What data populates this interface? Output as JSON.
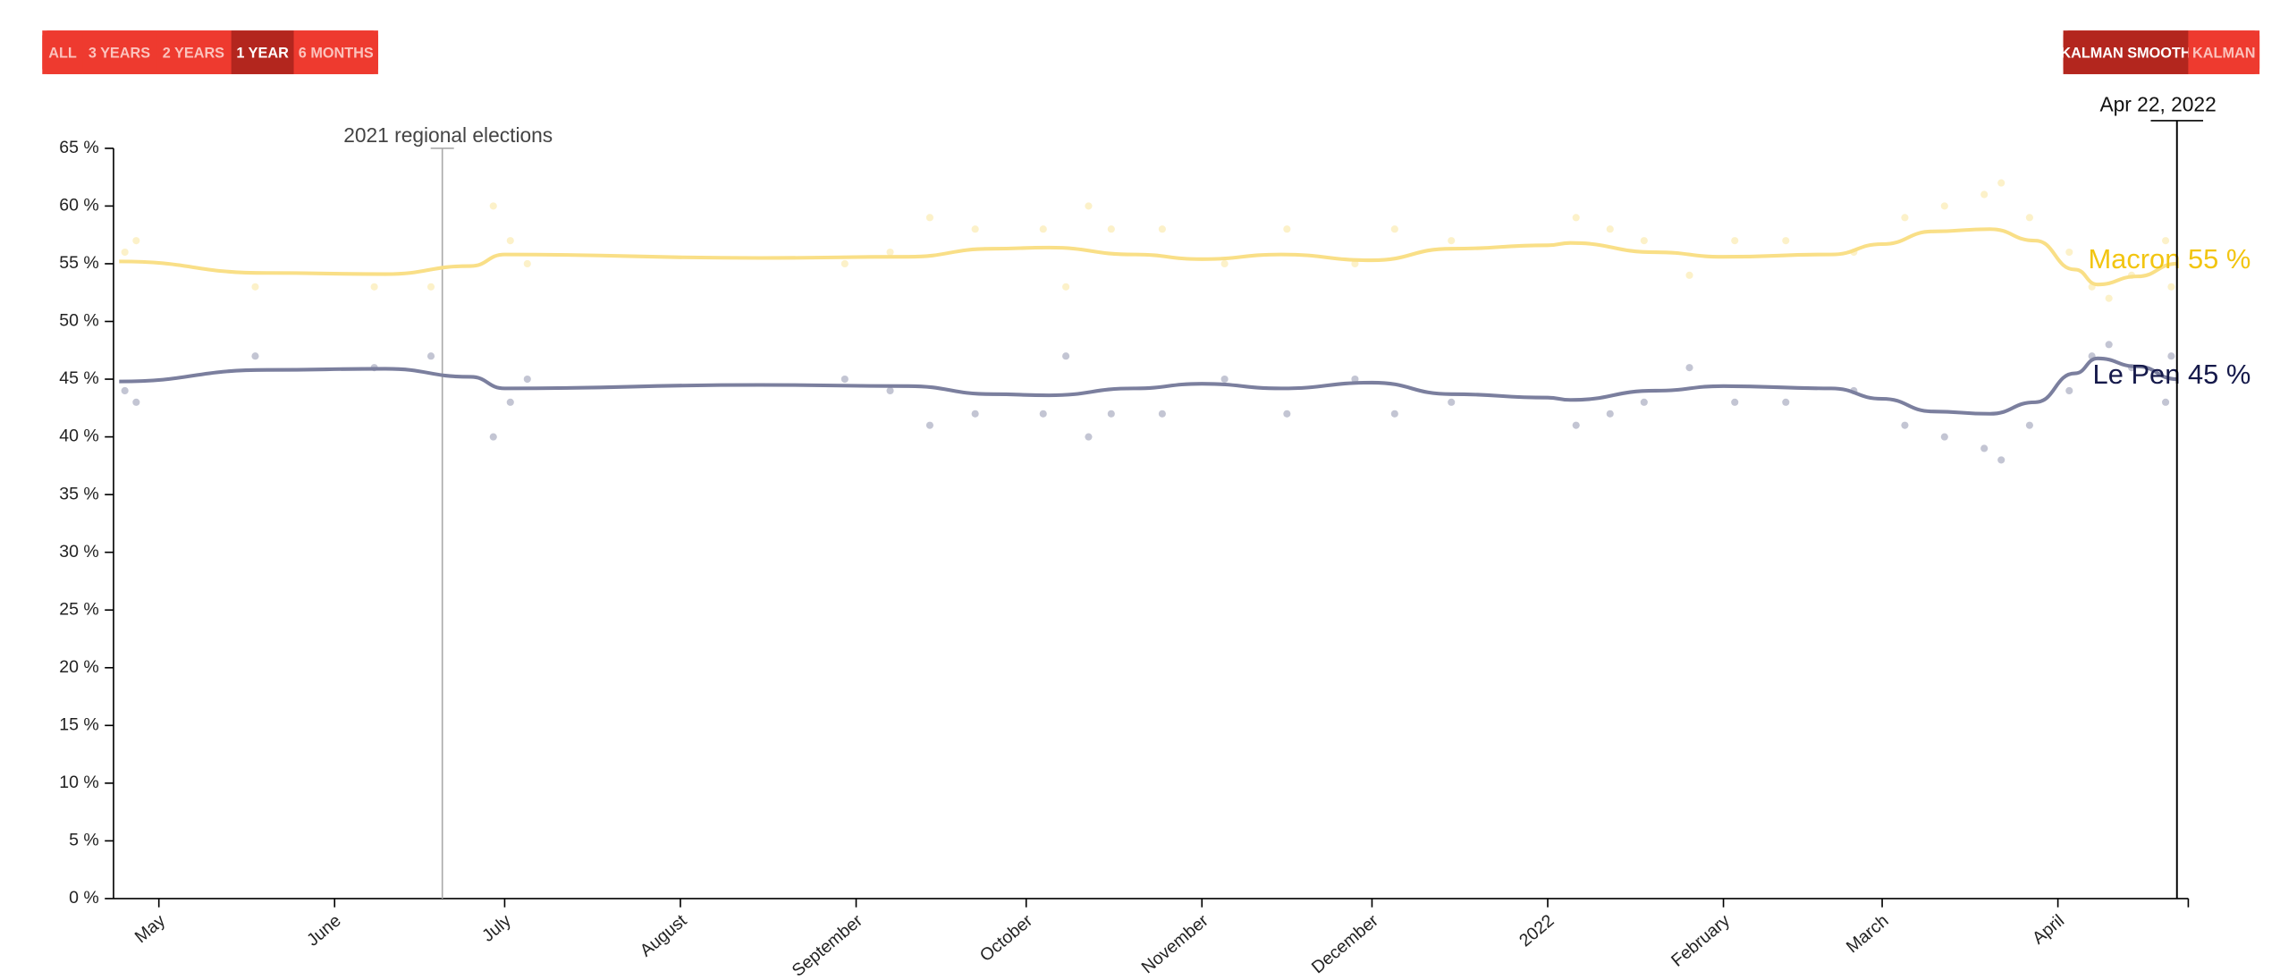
{
  "controls": {
    "range": [
      {
        "label": "ALL",
        "active": false
      },
      {
        "label": "3 YEARS",
        "active": false
      },
      {
        "label": "2 YEARS",
        "active": false
      },
      {
        "label": "1 YEAR",
        "active": true
      },
      {
        "label": "6 MONTHS",
        "active": false
      }
    ],
    "smoothing": [
      {
        "label": "KALMAN SMOOTH",
        "active": true
      },
      {
        "label": "KALMAN",
        "active": false
      }
    ]
  },
  "chart_data": {
    "type": "line",
    "xlim": [
      "2021-04-23",
      "2022-04-24"
    ],
    "xticks": [
      {
        "value": "2021-05-01",
        "label": "May"
      },
      {
        "value": "2021-06-01",
        "label": "June"
      },
      {
        "value": "2021-07-01",
        "label": "July"
      },
      {
        "value": "2021-08-01",
        "label": "August"
      },
      {
        "value": "2021-09-01",
        "label": "September"
      },
      {
        "value": "2021-10-01",
        "label": "October"
      },
      {
        "value": "2021-11-01",
        "label": "November"
      },
      {
        "value": "2021-12-01",
        "label": "December"
      },
      {
        "value": "2022-01-01",
        "label": "2022"
      },
      {
        "value": "2022-02-01",
        "label": "February"
      },
      {
        "value": "2022-03-01",
        "label": "March"
      },
      {
        "value": "2022-04-01",
        "label": "April"
      }
    ],
    "ylim": [
      0,
      65
    ],
    "yticks": [
      {
        "value": 0,
        "label": "0 %"
      },
      {
        "value": 5,
        "label": "5 %"
      },
      {
        "value": 10,
        "label": "10 %"
      },
      {
        "value": 15,
        "label": "15 %"
      },
      {
        "value": 20,
        "label": "20 %"
      },
      {
        "value": 25,
        "label": "25 %"
      },
      {
        "value": 30,
        "label": "30 %"
      },
      {
        "value": 35,
        "label": "35 %"
      },
      {
        "value": 40,
        "label": "40 %"
      },
      {
        "value": 45,
        "label": "45 %"
      },
      {
        "value": 50,
        "label": "50 %"
      },
      {
        "value": 55,
        "label": "55 %"
      },
      {
        "value": 60,
        "label": "60 %"
      },
      {
        "value": 65,
        "label": "65 %"
      }
    ],
    "annotation": {
      "x": "2021-06-20",
      "text": "2021 regional elections"
    },
    "cursor": {
      "x": "2022-04-22",
      "label": "Apr 22, 2022"
    },
    "x": [
      "2021-04-24",
      "2021-05-20",
      "2021-06-10",
      "2021-06-25",
      "2021-07-01",
      "2021-08-15",
      "2021-09-10",
      "2021-09-25",
      "2021-10-05",
      "2021-10-20",
      "2021-11-01",
      "2021-11-15",
      "2021-12-01",
      "2021-12-15",
      "2022-01-01",
      "2022-01-05",
      "2022-01-20",
      "2022-02-01",
      "2022-02-20",
      "2022-03-01",
      "2022-03-10",
      "2022-03-20",
      "2022-03-28",
      "2022-04-04",
      "2022-04-08",
      "2022-04-15",
      "2022-04-22"
    ],
    "poll_dates": [
      "2021-04-25",
      "2021-04-27",
      "2021-05-18",
      "2021-06-08",
      "2021-06-18",
      "2021-06-29",
      "2021-07-02",
      "2021-07-05",
      "2021-08-30",
      "2021-09-07",
      "2021-09-14",
      "2021-09-22",
      "2021-10-04",
      "2021-10-08",
      "2021-10-12",
      "2021-10-16",
      "2021-10-25",
      "2021-11-05",
      "2021-11-16",
      "2021-11-28",
      "2021-12-05",
      "2021-12-15",
      "2022-01-06",
      "2022-01-12",
      "2022-01-18",
      "2022-01-26",
      "2022-02-03",
      "2022-02-12",
      "2022-02-24",
      "2022-03-05",
      "2022-03-12",
      "2022-03-19",
      "2022-03-22",
      "2022-03-27",
      "2022-04-03",
      "2022-04-07",
      "2022-04-10",
      "2022-04-14",
      "2022-04-20",
      "2022-04-21"
    ],
    "series": [
      {
        "name": "Macron",
        "end_label": "Macron 55 %",
        "color": "#f9df87",
        "label_color": "#f2c511",
        "values": [
          55.2,
          54.2,
          54.1,
          54.8,
          55.8,
          55.5,
          55.6,
          56.3,
          56.4,
          55.8,
          55.4,
          55.8,
          55.3,
          56.3,
          56.6,
          56.8,
          56.0,
          55.6,
          55.8,
          56.7,
          57.8,
          58.0,
          57.0,
          54.5,
          53.2,
          53.9,
          55.0
        ],
        "polls": [
          56,
          57,
          53,
          53,
          53,
          60,
          57,
          55,
          55,
          56,
          59,
          58,
          58,
          53,
          60,
          58,
          58,
          55,
          58,
          55,
          58,
          57,
          59,
          58,
          57,
          54,
          57,
          57,
          56,
          59,
          60,
          61,
          62,
          59,
          56,
          53,
          52,
          54,
          57,
          53
        ]
      },
      {
        "name": "Le Pen",
        "end_label": "Le Pen 45 %",
        "color": "#7b7f9e",
        "label_color": "#15194a",
        "values": [
          44.8,
          45.8,
          45.9,
          45.2,
          44.2,
          44.5,
          44.4,
          43.7,
          43.6,
          44.2,
          44.6,
          44.2,
          44.7,
          43.7,
          43.4,
          43.2,
          44.0,
          44.4,
          44.2,
          43.3,
          42.2,
          42.0,
          43.0,
          45.5,
          46.8,
          46.1,
          45.0
        ],
        "polls": [
          44,
          43,
          47,
          46,
          47,
          40,
          43,
          45,
          45,
          44,
          41,
          42,
          42,
          47,
          40,
          42,
          42,
          45,
          42,
          45,
          42,
          43,
          41,
          42,
          43,
          46,
          43,
          43,
          44,
          41,
          40,
          39,
          38,
          41,
          44,
          47,
          48,
          46,
          43,
          47
        ]
      }
    ]
  }
}
